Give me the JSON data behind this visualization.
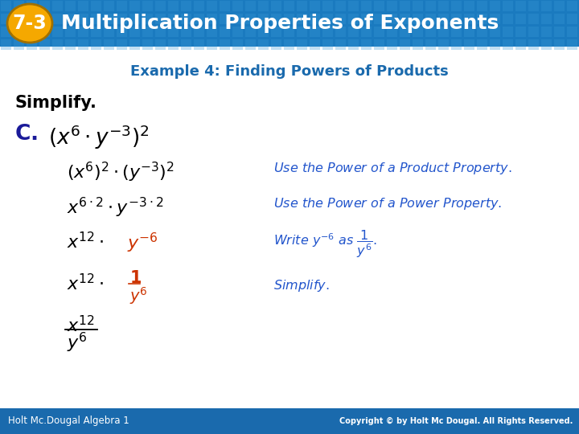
{
  "header_bg_color": "#1a7abf",
  "header_text": "Multiplication Properties of Exponents",
  "header_badge_text": "7-3",
  "header_badge_bg": "#f5a800",
  "header_badge_border": "#c07800",
  "example_title": "Example 4: Finding Powers of Products",
  "example_title_color": "#1a6aad",
  "simplify_label": "Simplify.",
  "body_bg": "#ffffff",
  "footer_bg_color": "#1a6aad",
  "footer_left": "Holt Mc.Dougal Algebra 1",
  "footer_right": "Copyright © by Holt Mc Dougal. All Rights Reserved.",
  "black": "#000000",
  "blue_dark": "#1a1a99",
  "orange": "#cc3300",
  "comment_color": "#2255cc"
}
